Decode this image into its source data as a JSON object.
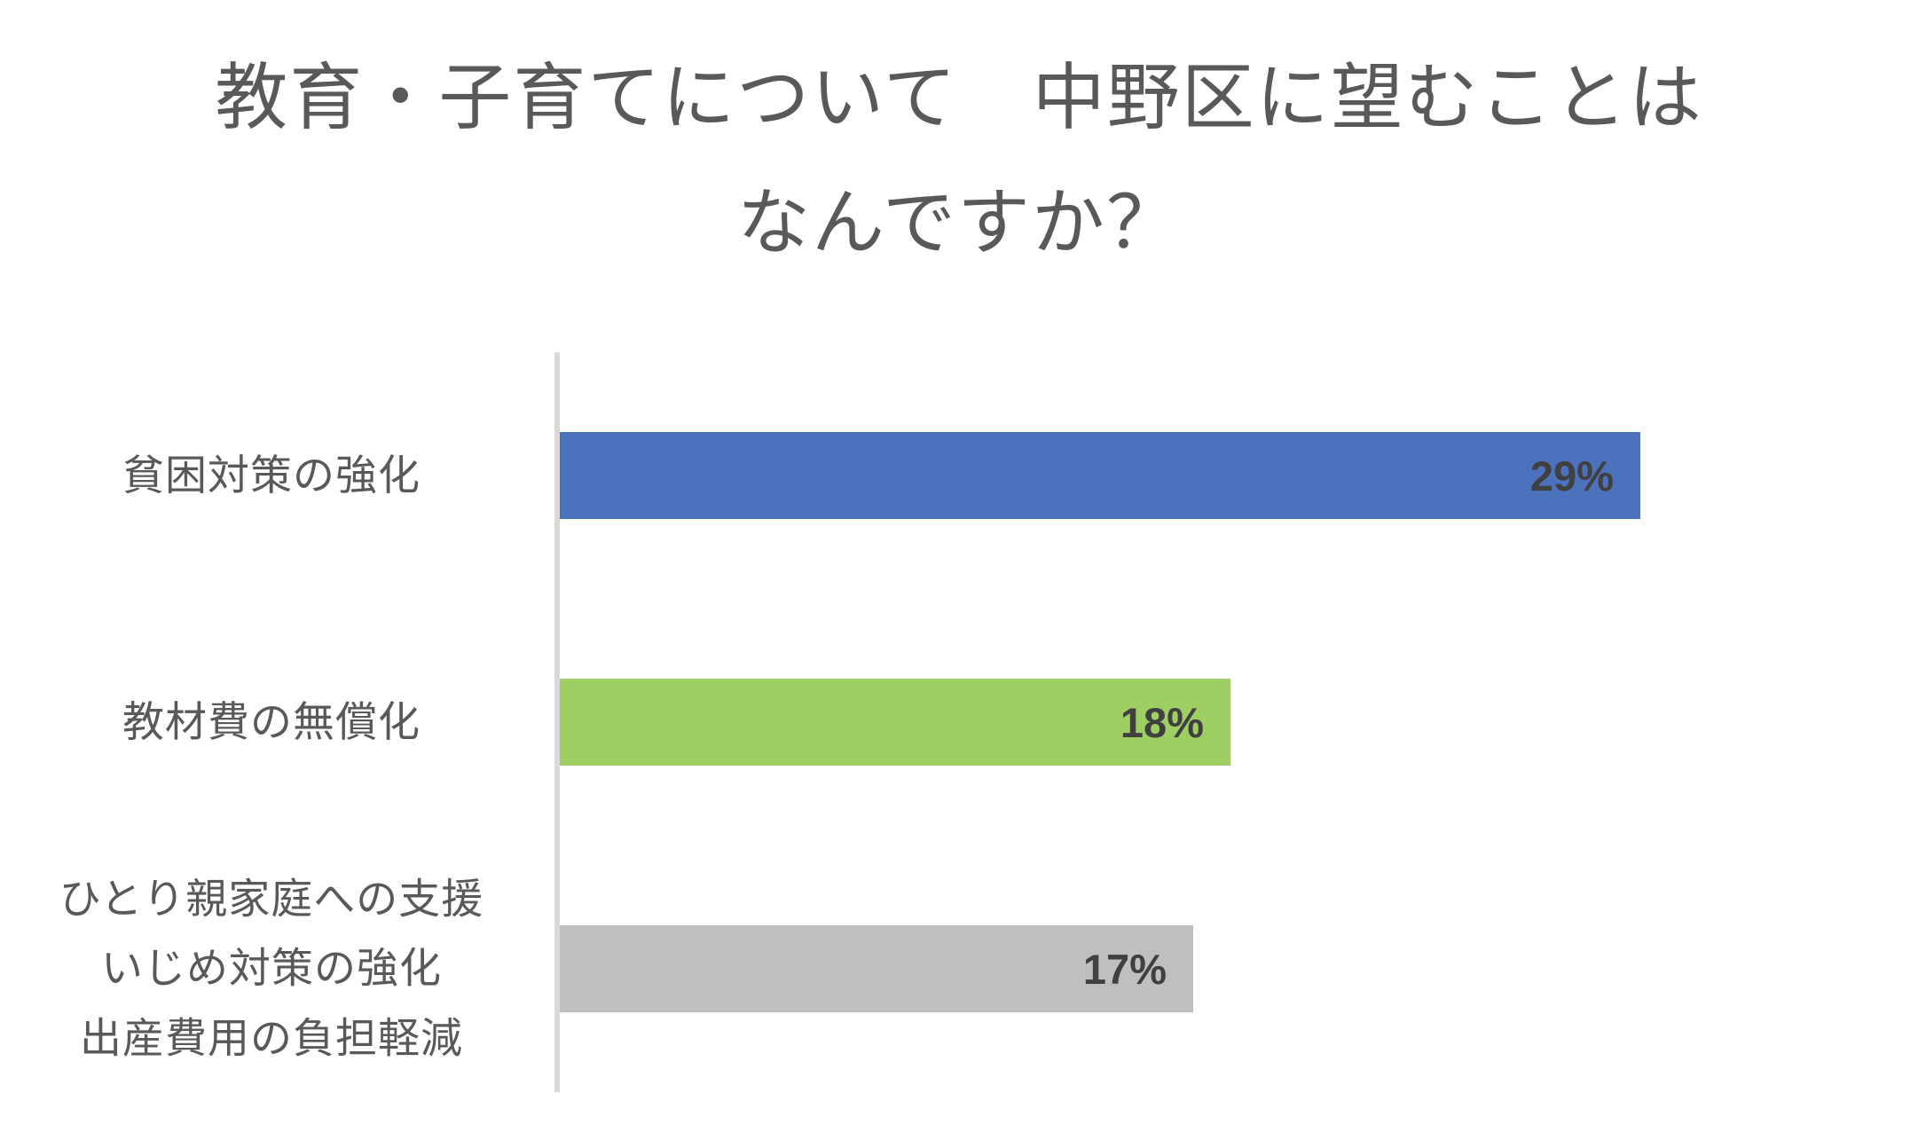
{
  "chart_data": {
    "type": "bar",
    "orientation": "horizontal",
    "title": "教育・子育てについて　中野区に望むことはなんですか？",
    "title_lines": [
      "教育・子育てについて　中野区に望むことは",
      "なんですか？"
    ],
    "categories": [
      "貧困対策の強化",
      "教材費の無償化",
      "ひとり親家庭への支援\nいじめ対策の強化\n出産費用の負担軽減"
    ],
    "values": [
      29,
      18,
      17
    ],
    "value_labels": [
      "29%",
      "18%",
      "17%"
    ],
    "unit": "%",
    "bar_colors": [
      "#4C72BE",
      "#9FCE63",
      "#BFBFBF"
    ],
    "value_label_position": "inside-end",
    "legend": "none",
    "grid": "off",
    "axis": {
      "value_axis_visible": false,
      "category_axis_line_color": "#D9D9D9"
    },
    "text_colors": {
      "title": "#595959",
      "category_labels": "#595959",
      "value_labels": "#404040"
    },
    "background": "#FFFFFF"
  }
}
